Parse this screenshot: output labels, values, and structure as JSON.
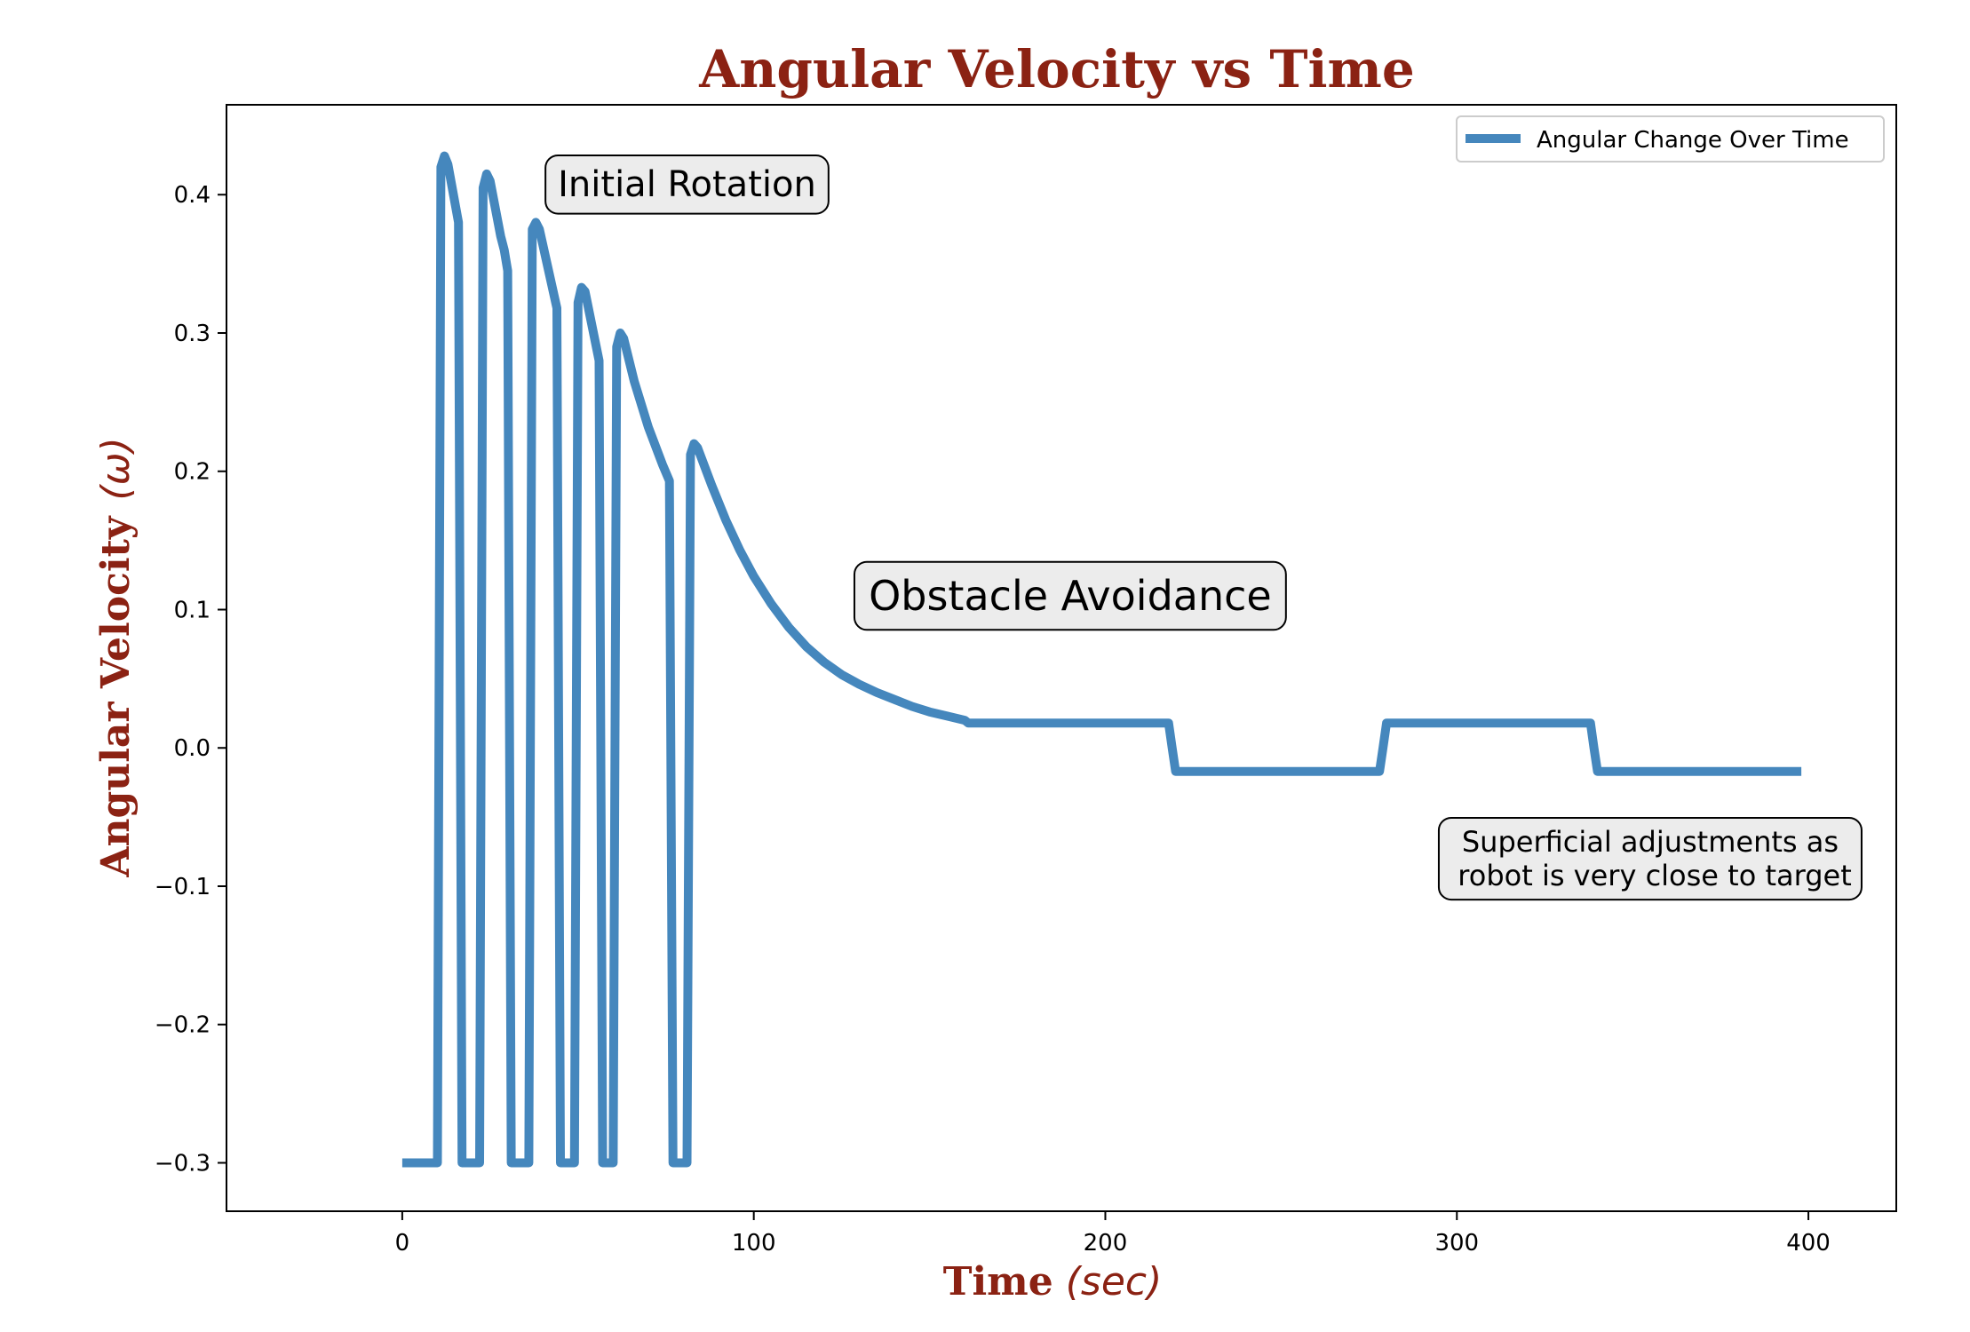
{
  "colors": {
    "label": "#8b2213",
    "series": "#4587bd",
    "annotation_fill": "#ececec",
    "annotation_border": "#000000",
    "axis": "#000000"
  },
  "chart_data": {
    "type": "line",
    "title": "Angular Velocity vs Time",
    "xlabel": "Time",
    "xlabel_unit": "(sec)",
    "ylabel": "Angular Velocity",
    "ylabel_unit": "(ω)",
    "xlim": [
      -50,
      425
    ],
    "ylim": [
      -0.335,
      0.465
    ],
    "xticks": [
      0,
      100,
      200,
      300,
      400
    ],
    "xtick_labels": [
      "0",
      "100",
      "200",
      "300",
      "400"
    ],
    "yticks": [
      -0.3,
      -0.2,
      -0.1,
      0.0,
      0.1,
      0.2,
      0.3,
      0.4
    ],
    "ytick_labels": [
      "−0.3",
      "−0.2",
      "−0.1",
      "0.0",
      "0.1",
      "0.2",
      "0.3",
      "0.4"
    ],
    "grid": false,
    "legend_position": "top-right",
    "series": [
      {
        "name": "Angular Change Over Time",
        "color": "#4587bd",
        "x": [
          0,
          10,
          11,
          12,
          13,
          16,
          17,
          22,
          23,
          24,
          25,
          28,
          29,
          30,
          31,
          36,
          37,
          38,
          39,
          44,
          45,
          49,
          50,
          51,
          52,
          56,
          57,
          60,
          61,
          62,
          63,
          66,
          70,
          74,
          76,
          77,
          81,
          82,
          83,
          84,
          88,
          92,
          96,
          100,
          105,
          110,
          115,
          120,
          125,
          130,
          135,
          140,
          145,
          150,
          155,
          160,
          161,
          218,
          219,
          220,
          221,
          278,
          279,
          280,
          281,
          338,
          339,
          340,
          341,
          398
        ],
        "y": [
          -0.3,
          -0.3,
          0.42,
          0.428,
          0.422,
          0.38,
          -0.3,
          -0.3,
          0.405,
          0.415,
          0.41,
          0.37,
          0.36,
          0.345,
          -0.3,
          -0.3,
          0.375,
          0.38,
          0.375,
          0.318,
          -0.3,
          -0.3,
          0.322,
          0.333,
          0.33,
          0.28,
          -0.3,
          -0.3,
          0.29,
          0.3,
          0.296,
          0.265,
          0.232,
          0.205,
          0.193,
          -0.3,
          -0.3,
          0.212,
          0.22,
          0.217,
          0.19,
          0.165,
          0.143,
          0.124,
          0.104,
          0.087,
          0.073,
          0.062,
          0.053,
          0.046,
          0.04,
          0.035,
          0.03,
          0.026,
          0.023,
          0.02,
          0.018,
          0.018,
          0.0,
          -0.017,
          -0.017,
          -0.017,
          0.0,
          0.018,
          0.018,
          0.018,
          0.0,
          -0.017,
          -0.017,
          -0.017
        ]
      }
    ],
    "annotations": [
      {
        "text": "Initial Rotation",
        "lines": [
          "Initial Rotation"
        ],
        "x": 81,
        "y": 0.408,
        "font_size": 40
      },
      {
        "text": "Obstacle Avoidance",
        "lines": [
          "Obstacle Avoidance"
        ],
        "x": 190,
        "y": 0.11,
        "font_size": 46
      },
      {
        "text": "Superficial adjustments as robot is very close to target",
        "lines": [
          "Superficial adjustments as",
          " robot is very close to target"
        ],
        "x": 355,
        "y": -0.08,
        "font_size": 32
      }
    ]
  }
}
